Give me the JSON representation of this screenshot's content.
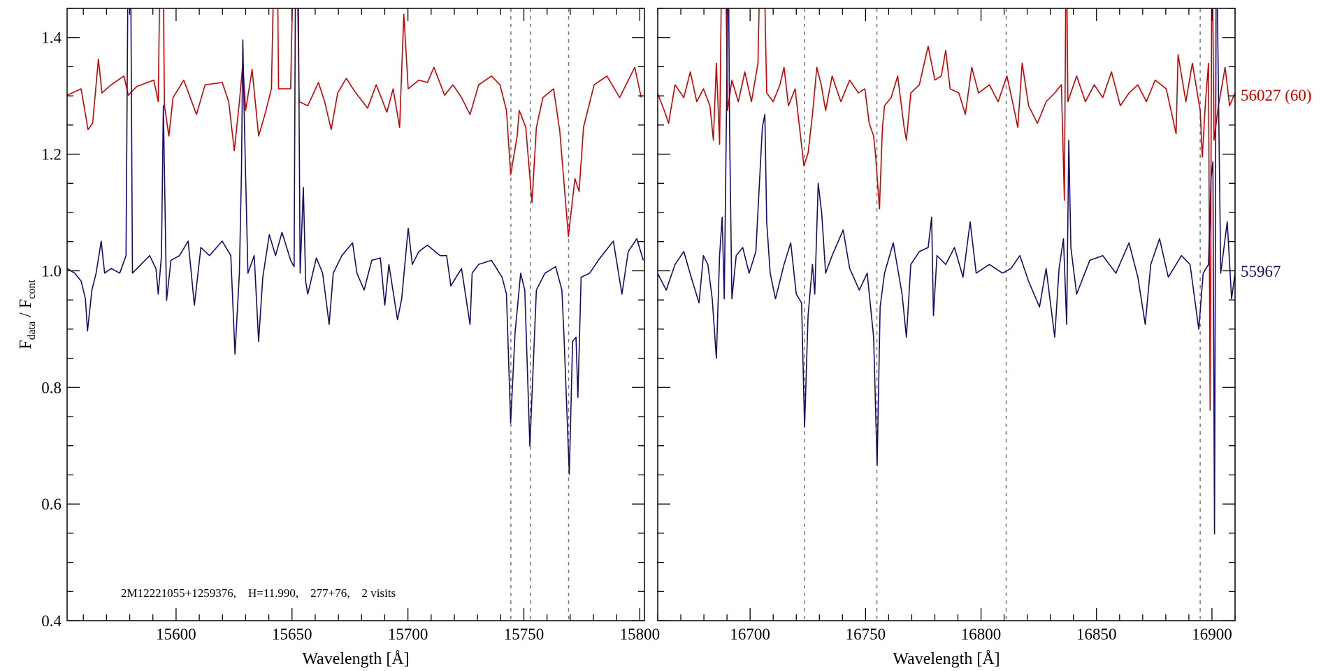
{
  "chart_data": [
    {
      "type": "line",
      "panel": "left",
      "xlabel": "Wavelength [Å]",
      "ylabel_main": "F",
      "ylabel_sub1": "data",
      "ylabel_sep": " / F",
      "ylabel_sub2": "cont",
      "xlim": [
        15553,
        15802
      ],
      "ylim": [
        0.4,
        1.45
      ],
      "xticks": [
        15600,
        15650,
        15700,
        15750,
        15800
      ],
      "xtick_labels": [
        "15600",
        "15650",
        "15700",
        "15750",
        "15800"
      ],
      "yticks": [
        0.4,
        0.6,
        0.8,
        1.0,
        1.2,
        1.4
      ],
      "ytick_labels": [
        "0.4",
        "0.6",
        "0.8",
        "1.0",
        "1.2",
        "1.4"
      ],
      "grid": false,
      "annotation": "2M12221055+1259376,    H=11.990,    277+76,    2 visits",
      "vlines": [
        15744.4,
        15752.8,
        15769.3
      ],
      "series": [
        {
          "color": "#cc0000",
          "x": [
            15553,
            15559,
            15560,
            15562,
            15564,
            15566.5,
            15568,
            15572,
            15577.5,
            15579.4,
            15583,
            15590.4,
            15592.3,
            15593.3,
            15594.2,
            15595,
            15596.9,
            15598.7,
            15603.3,
            15608.8,
            15612.5,
            15619.9,
            15622.7,
            15625.1,
            15627.3,
            15628.8,
            15630,
            15632.8,
            15635.6,
            15638.3,
            15641.1,
            15642.6,
            15643.6,
            15644.2,
            15649.4,
            15650.9,
            15651.9,
            15653.1,
            15656.8,
            15661.4,
            15664.1,
            15666.9,
            15669.7,
            15673.4,
            15677,
            15682.6,
            15686.3,
            15690.9,
            15693.6,
            15696.4,
            15698.2,
            15700.1,
            15704.7,
            15708.4,
            15711.2,
            15715.8,
            15719.4,
            15723.1,
            15726.8,
            15730.5,
            15736,
            15739.7,
            15742.5,
            15744.3,
            15747.1,
            15748,
            15750.8,
            15753.5,
            15755.4,
            15758.2,
            15762.8,
            15765.5,
            15769.2,
            15772,
            15773.8,
            15775.7,
            15780.3,
            15785.8,
            15791.3,
            15797.8,
            15800.6
          ],
          "y": [
            1.301,
            1.312,
            1.29,
            1.242,
            1.253,
            1.363,
            1.305,
            1.319,
            1.334,
            1.301,
            1.316,
            1.327,
            1.29,
            1.6,
            1.6,
            1.283,
            1.231,
            1.297,
            1.327,
            1.268,
            1.319,
            1.323,
            1.29,
            1.206,
            1.29,
            1.356,
            1.275,
            1.345,
            1.231,
            1.268,
            1.312,
            1.6,
            1.6,
            1.312,
            1.312,
            1.6,
            1.6,
            1.29,
            1.283,
            1.323,
            1.29,
            1.242,
            1.305,
            1.33,
            1.308,
            1.279,
            1.319,
            1.272,
            1.312,
            1.246,
            1.44,
            1.312,
            1.327,
            1.323,
            1.349,
            1.301,
            1.319,
            1.297,
            1.268,
            1.319,
            1.334,
            1.319,
            1.275,
            1.165,
            1.231,
            1.275,
            1.246,
            1.117,
            1.246,
            1.297,
            1.312,
            1.239,
            1.059,
            1.158,
            1.136,
            1.246,
            1.319,
            1.334,
            1.297,
            1.349,
            1.297
          ]
        },
        {
          "color": "#1a0a6b",
          "x": [
            15553,
            15556.3,
            15559.1,
            15560.9,
            15561.8,
            15563.7,
            15565.5,
            15567.7,
            15569.2,
            15572,
            15575.7,
            15578.4,
            15579.4,
            15580.3,
            15581.2,
            15584.9,
            15588.6,
            15591.3,
            15592.3,
            15593.7,
            15594.5,
            15595.9,
            15597.8,
            15601.5,
            15605.2,
            15607.9,
            15610.7,
            15614.4,
            15619.9,
            15623.6,
            15625.4,
            15627.3,
            15628.2,
            15628.8,
            15629.5,
            15631,
            15633.7,
            15635.6,
            15637.4,
            15640.2,
            15642.9,
            15645.7,
            15649.4,
            15650.9,
            15651.6,
            15652.5,
            15653.5,
            15654.9,
            15655.9,
            15656.8,
            15660.5,
            15663.2,
            15666,
            15667.8,
            15671.5,
            15676.1,
            15678,
            15681.1,
            15684.4,
            15688.1,
            15690,
            15691.8,
            15695.5,
            15697.3,
            15700.1,
            15701.9,
            15704.7,
            15708.4,
            15713.9,
            15716.7,
            15718.5,
            15723.1,
            15726.8,
            15727.7,
            15730.5,
            15736,
            15740.6,
            15742.5,
            15744.3,
            15746.2,
            15748.6,
            15750.4,
            15752.6,
            15755.4,
            15759.1,
            15763.7,
            15766.4,
            15767.4,
            15769.6,
            15771,
            15772.5,
            15773.3,
            15774.7,
            15778.4,
            15782.1,
            15788.6,
            15792.3,
            15795,
            15798.7,
            15801.5
          ],
          "y": [
            1.004,
            0.996,
            0.982,
            0.952,
            0.897,
            0.967,
            0.996,
            1.051,
            0.996,
            1.004,
            0.996,
            1.026,
            1.6,
            1.6,
            0.996,
            1.011,
            1.026,
            1.004,
            0.96,
            1.026,
            1.283,
            0.949,
            1.018,
            1.026,
            1.051,
            0.941,
            1.04,
            1.026,
            1.051,
            1.026,
            0.857,
            0.996,
            1.172,
            1.396,
            1.246,
            0.996,
            1.026,
            0.879,
            0.989,
            1.062,
            1.026,
            1.066,
            1.018,
            1.007,
            1.6,
            1.6,
            0.996,
            1.143,
            0.982,
            0.96,
            1.022,
            0.996,
            0.908,
            0.996,
            1.026,
            1.048,
            0.996,
            0.967,
            1.018,
            1.022,
            0.941,
            1.011,
            0.916,
            0.952,
            1.073,
            1.011,
            1.033,
            1.044,
            1.026,
            1.026,
            0.974,
            1.004,
            0.908,
            0.996,
            1.011,
            1.018,
            0.989,
            0.96,
            0.739,
            0.894,
            0.996,
            0.967,
            0.699,
            0.967,
            0.996,
            1.007,
            0.967,
            0.879,
            0.651,
            0.879,
            0.886,
            0.783,
            0.989,
            0.996,
            1.018,
            1.051,
            0.96,
            1.033,
            1.055,
            1.018
          ]
        }
      ]
    },
    {
      "type": "line",
      "panel": "right",
      "xlabel": "Wavelength [Å]",
      "xlim": [
        16660,
        16910
      ],
      "ylim": [
        0.4,
        1.45
      ],
      "xticks": [
        16700,
        16750,
        16800,
        16850,
        16900
      ],
      "xtick_labels": [
        "16700",
        "16750",
        "16800",
        "16850",
        "16900"
      ],
      "yticks": [
        0.4,
        0.6,
        0.8,
        1.0,
        1.2,
        1.4
      ],
      "grid": false,
      "vlines": [
        16723.6,
        16754.9,
        16810.9,
        16894.9
      ],
      "series": [
        {
          "name": "56027 (60)",
          "color": "#cc0000",
          "x": [
            16659.9,
            16662.8,
            16664.7,
            16667.5,
            16671.3,
            16674.1,
            16676.9,
            16679.8,
            16682.6,
            16684.1,
            16685.4,
            16686.8,
            16687.9,
            16689.2,
            16690.2,
            16692.1,
            16694.9,
            16697.7,
            16700.6,
            16703.4,
            16704.7,
            16705.7,
            16707.2,
            16710,
            16712.9,
            16714.7,
            16716.6,
            16719.5,
            16721.4,
            16723.3,
            16725.1,
            16727,
            16728.9,
            16730.8,
            16732.7,
            16735.5,
            16739.3,
            16743.1,
            16746.9,
            16749.7,
            16751.6,
            16753.5,
            16754.4,
            16756,
            16757.3,
            16758.2,
            16761.1,
            16763.9,
            16766.7,
            16767.7,
            16769.6,
            16773.3,
            16777.1,
            16780,
            16782.8,
            16784.7,
            16786.6,
            16790.4,
            16793.2,
            16796,
            16798.9,
            16803.6,
            16807.4,
            16811.2,
            16814,
            16815.9,
            16817.8,
            16820.6,
            16824.4,
            16828.2,
            16831.9,
            16834.8,
            16836.1,
            16836.9,
            16837.6,
            16841.4,
            16845.2,
            16849,
            16852.7,
            16856.5,
            16860.3,
            16864.1,
            16867.9,
            16871.6,
            16875.4,
            16880.2,
            16884.5,
            16885.3,
            16888.7,
            16891.5,
            16894.9,
            16895.8,
            16897.2,
            16898.5,
            16899.2,
            16900,
            16900.9,
            16902.8,
            16905.7,
            16907.6,
            16910
          ],
          "y": [
            1.305,
            1.275,
            1.253,
            1.319,
            1.297,
            1.341,
            1.29,
            1.312,
            1.283,
            1.224,
            1.356,
            1.217,
            1.6,
            1.6,
            1.275,
            1.327,
            1.29,
            1.341,
            1.29,
            1.356,
            1.6,
            1.6,
            1.305,
            1.29,
            1.319,
            1.349,
            1.283,
            1.312,
            1.246,
            1.18,
            1.202,
            1.268,
            1.349,
            1.319,
            1.275,
            1.334,
            1.29,
            1.327,
            1.305,
            1.312,
            1.253,
            1.231,
            1.195,
            1.106,
            1.246,
            1.283,
            1.297,
            1.334,
            1.246,
            1.224,
            1.305,
            1.319,
            1.385,
            1.327,
            1.334,
            1.378,
            1.312,
            1.305,
            1.268,
            1.349,
            1.305,
            1.319,
            1.29,
            1.334,
            1.283,
            1.246,
            1.356,
            1.283,
            1.253,
            1.29,
            1.305,
            1.319,
            1.121,
            1.6,
            1.29,
            1.334,
            1.29,
            1.319,
            1.297,
            1.341,
            1.283,
            1.305,
            1.319,
            1.29,
            1.327,
            1.312,
            1.235,
            1.371,
            1.29,
            1.356,
            1.275,
            1.195,
            1.29,
            1.356,
            0.761,
            1.6,
            1.224,
            1.283,
            1.349,
            1.283,
            1.305
          ]
        },
        {
          "name": "55967",
          "color": "#1a0a6b",
          "x": [
            16659.9,
            16663.7,
            16667.5,
            16671.3,
            16675,
            16677.9,
            16679.8,
            16681.7,
            16683.6,
            16685.4,
            16686.8,
            16687.9,
            16688.8,
            16689.8,
            16690.5,
            16691.1,
            16692.1,
            16694,
            16696.8,
            16699.6,
            16702.5,
            16705.3,
            16706.4,
            16707.2,
            16708.7,
            16711,
            16714.7,
            16717.6,
            16720,
            16722.3,
            16723.6,
            16725.1,
            16727,
            16728,
            16729.5,
            16731,
            16732.7,
            16735.5,
            16740.3,
            16743.1,
            16747.3,
            16750.7,
            16753.5,
            16755,
            16756.3,
            16758.2,
            16762,
            16765.8,
            16767.7,
            16769.6,
            16773.3,
            16777.1,
            16778.6,
            16779.4,
            16780.9,
            16784.7,
            16788.5,
            16792.2,
            16795.3,
            16797.9,
            16803.6,
            16809.3,
            16813,
            16816.8,
            16820.6,
            16825.3,
            16828.2,
            16831.9,
            16833.8,
            16835.7,
            16837.1,
            16838,
            16838.9,
            16841.4,
            16847.1,
            16852.7,
            16858.4,
            16864.1,
            16867.9,
            16871.1,
            16873.5,
            16877.3,
            16881.1,
            16886.8,
            16890.5,
            16894.3,
            16896.2,
            16898.5,
            16899.6,
            16900.4,
            16901.1,
            16901.9,
            16903.8,
            16906.6,
            16908.5,
            16910
          ],
          "y": [
            0.996,
            0.967,
            1.011,
            1.033,
            0.982,
            0.945,
            1.026,
            1.011,
            0.952,
            0.85,
            1.026,
            1.092,
            0.952,
            1.283,
            1.6,
            1.246,
            0.952,
            1.026,
            1.04,
            0.996,
            1.033,
            1.246,
            1.268,
            1.084,
            0.996,
            0.952,
            1.011,
            1.048,
            0.96,
            0.945,
            0.732,
            0.923,
            1.011,
            0.96,
            1.15,
            1.099,
            0.996,
            1.026,
            1.07,
            1.004,
            0.967,
            0.996,
            0.886,
            0.666,
            0.938,
            0.996,
            1.048,
            0.96,
            0.886,
            1.011,
            1.033,
            1.04,
            1.092,
            0.923,
            1.026,
            1.011,
            1.04,
            0.989,
            1.084,
            0.996,
            1.011,
            0.996,
            1.004,
            1.026,
            0.982,
            0.938,
            1.004,
            0.886,
            1.004,
            1.055,
            0.908,
            1.224,
            1.04,
            0.96,
            1.018,
            1.026,
            0.996,
            1.048,
            0.989,
            0.908,
            1.011,
            1.055,
            0.989,
            1.026,
            1.011,
            0.9,
            0.996,
            1.011,
            1.158,
            1.187,
            0.549,
            1.6,
            0.996,
            1.084,
            0.952,
            0.996
          ]
        }
      ]
    }
  ]
}
